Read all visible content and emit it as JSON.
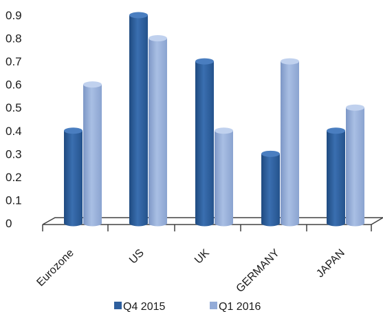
{
  "chart_data": {
    "type": "bar",
    "style": "3d-cylinder",
    "categories": [
      "Eurozone",
      "US",
      "UK",
      "GERMANY",
      "JAPAN"
    ],
    "series": [
      {
        "name": "Q4 2015",
        "color": "#2e5f9e",
        "values": [
          0.4,
          0.9,
          0.7,
          0.3,
          0.4
        ]
      },
      {
        "name": "Q1 2016",
        "color": "#94acd8",
        "values": [
          0.6,
          0.8,
          0.4,
          0.7,
          0.5
        ]
      }
    ],
    "y_ticks": [
      "0",
      "0.1",
      "0.2",
      "0.3",
      "0.4",
      "0.5",
      "0.6",
      "0.7",
      "0.8",
      "0.9"
    ],
    "ylim": [
      0,
      0.9
    ],
    "grid": false,
    "legend_position": "bottom"
  }
}
